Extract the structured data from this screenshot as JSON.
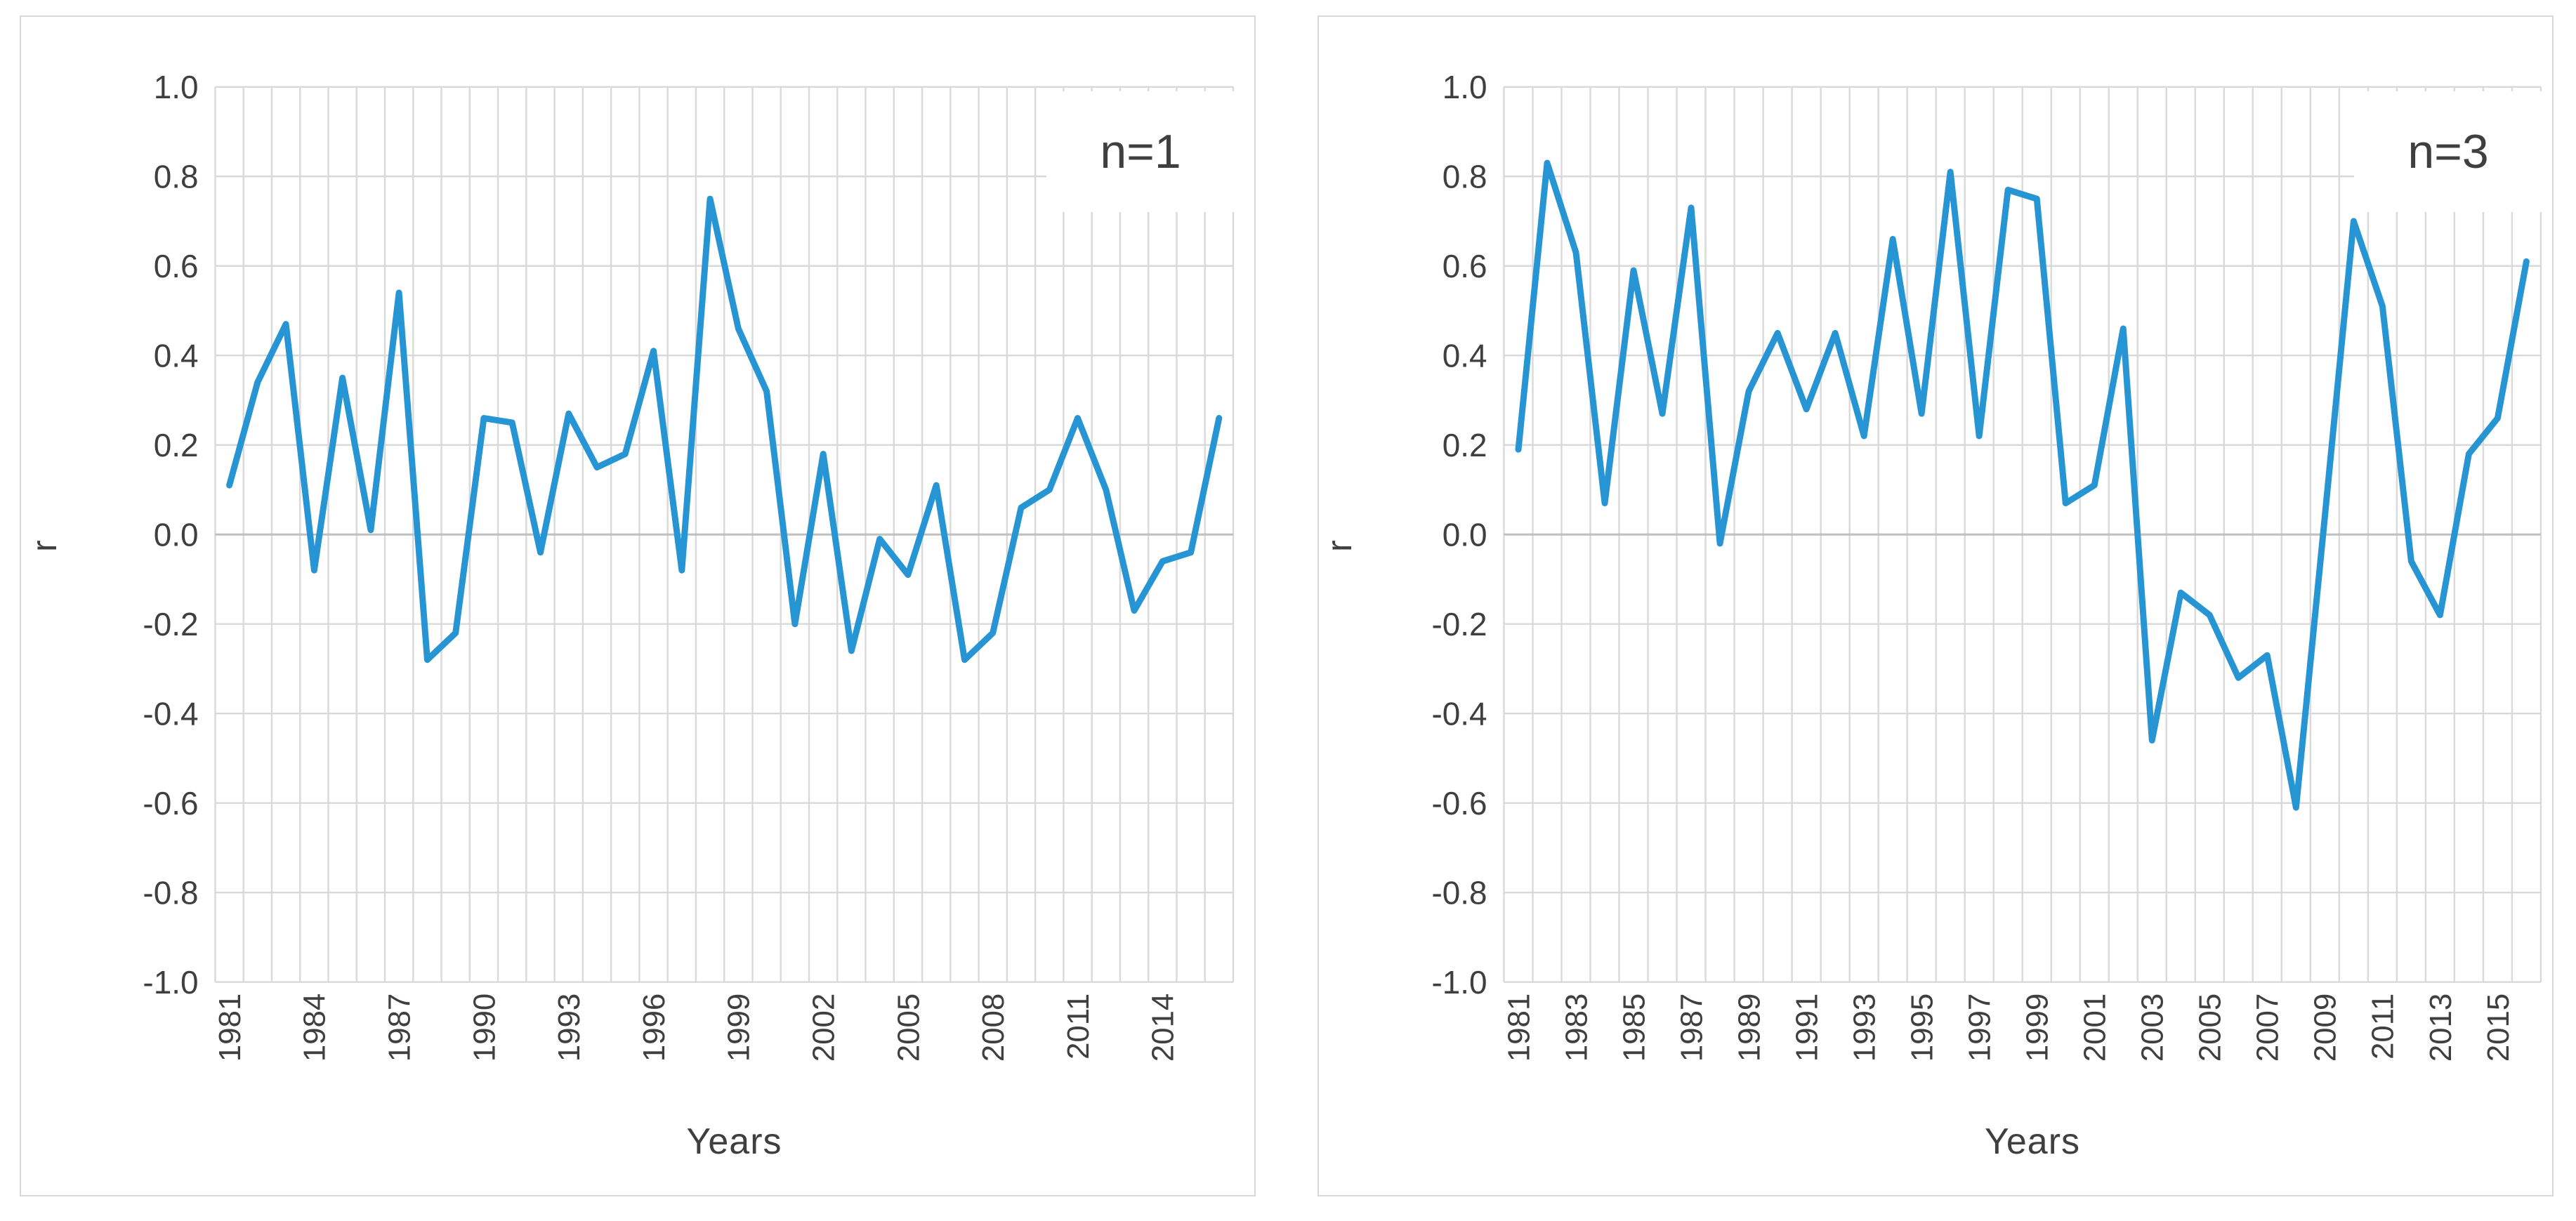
{
  "page": {
    "background_color": "#ffffff",
    "panel_border_color": "#d8d8d8",
    "text_color": "#3f3f3f"
  },
  "chart_data": [
    {
      "type": "line",
      "annotation": "n=1",
      "title": "",
      "xlabel": "Years",
      "ylabel": "r",
      "ylim": [
        -1.0,
        1.0
      ],
      "ytick_step": 0.2,
      "xtick_label_every": 3,
      "legend_position": "none",
      "grid": "vertical line per year, horizontal line per 0.2",
      "line_color": "#2795d3",
      "grid_color": "#d9d9d9",
      "zero_line_color": "#bfbfbf",
      "x": [
        1981,
        1982,
        1983,
        1984,
        1985,
        1986,
        1987,
        1988,
        1989,
        1990,
        1991,
        1992,
        1993,
        1994,
        1995,
        1996,
        1997,
        1998,
        1999,
        2000,
        2001,
        2002,
        2003,
        2004,
        2005,
        2006,
        2007,
        2008,
        2009,
        2010,
        2011,
        2012,
        2013,
        2014,
        2015,
        2016
      ],
      "series": [
        {
          "name": "r (n=1)",
          "values": [
            0.11,
            0.34,
            0.47,
            -0.08,
            0.35,
            0.01,
            0.54,
            -0.28,
            -0.22,
            0.26,
            0.25,
            -0.04,
            0.27,
            0.15,
            0.18,
            0.41,
            -0.08,
            0.75,
            0.46,
            0.32,
            -0.2,
            0.18,
            -0.26,
            -0.01,
            -0.09,
            0.11,
            -0.28,
            -0.22,
            0.06,
            0.1,
            0.26,
            0.1,
            -0.17,
            -0.06,
            -0.04,
            0.26
          ]
        }
      ]
    },
    {
      "type": "line",
      "annotation": "n=3",
      "title": "",
      "xlabel": "Years",
      "ylabel": "r",
      "ylim": [
        -1.0,
        1.0
      ],
      "ytick_step": 0.2,
      "xtick_label_every": 2,
      "legend_position": "none",
      "grid": "vertical line per year, horizontal line per 0.2",
      "line_color": "#2795d3",
      "grid_color": "#d9d9d9",
      "zero_line_color": "#bfbfbf",
      "x": [
        1981,
        1982,
        1983,
        1984,
        1985,
        1986,
        1987,
        1988,
        1989,
        1990,
        1991,
        1992,
        1993,
        1994,
        1995,
        1996,
        1997,
        1998,
        1999,
        2000,
        2001,
        2002,
        2003,
        2004,
        2005,
        2006,
        2007,
        2008,
        2009,
        2010,
        2011,
        2012,
        2013,
        2014,
        2015,
        2016
      ],
      "series": [
        {
          "name": "r (n=3)",
          "values": [
            0.19,
            0.83,
            0.63,
            0.07,
            0.59,
            0.27,
            0.73,
            -0.02,
            0.32,
            0.45,
            0.28,
            0.45,
            0.22,
            0.66,
            0.27,
            0.81,
            0.22,
            0.77,
            0.75,
            0.07,
            0.11,
            0.46,
            -0.46,
            -0.13,
            -0.18,
            -0.32,
            -0.27,
            -0.61,
            0.04,
            0.7,
            0.51,
            -0.06,
            -0.18,
            0.18,
            0.26,
            0.61
          ]
        }
      ]
    }
  ]
}
